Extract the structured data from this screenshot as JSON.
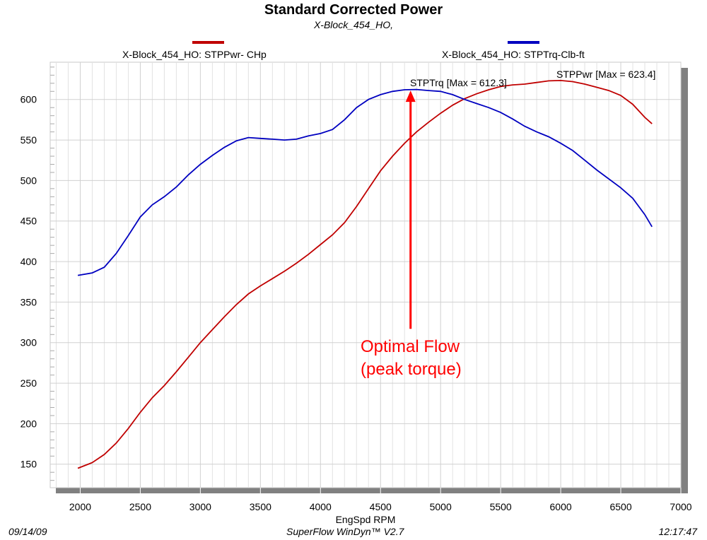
{
  "title": "Standard Corrected Power",
  "subtitle": "X-Block_454_HO,",
  "footer": {
    "date": "09/14/09",
    "software": "SuperFlow WinDyn™ V2.7",
    "time": "12:17:47"
  },
  "annotation": {
    "line1": "Optimal Flow",
    "line2": "(peak torque)",
    "rpm": 4750,
    "from": 317,
    "to": 611,
    "color": "#ff0000"
  },
  "chart_data": {
    "type": "line",
    "title": "Standard Corrected Power",
    "subtitle": "X-Block_454_HO,",
    "xlabel": "EngSpd  RPM",
    "ylabel": "",
    "xlim": [
      1750,
      7000
    ],
    "ylim": [
      121,
      646
    ],
    "xticks": [
      2000,
      2500,
      3000,
      3500,
      4000,
      4500,
      5000,
      5500,
      6000,
      6500,
      7000
    ],
    "yticks": [
      150,
      200,
      250,
      300,
      350,
      400,
      450,
      500,
      550,
      600
    ],
    "grid": true,
    "legend_placement": "top",
    "series": [
      {
        "name": "X-Block_454_HO: STPPwr- CHp",
        "color": "#c00000",
        "max_label": "STPPwr [Max = 623.4]",
        "x": [
          1980,
          2100,
          2200,
          2300,
          2400,
          2500,
          2600,
          2700,
          2800,
          2900,
          3000,
          3100,
          3200,
          3300,
          3400,
          3500,
          3600,
          3700,
          3800,
          3900,
          4000,
          4100,
          4200,
          4300,
          4400,
          4500,
          4600,
          4700,
          4800,
          4900,
          5000,
          5100,
          5200,
          5300,
          5400,
          5500,
          5600,
          5700,
          5800,
          5900,
          6000,
          6100,
          6200,
          6300,
          6400,
          6500,
          6600,
          6700,
          6760
        ],
        "y": [
          145,
          152,
          162,
          176,
          194,
          214,
          232,
          247,
          264,
          282,
          300,
          316,
          332,
          347,
          360,
          370,
          379,
          388,
          398,
          409,
          421,
          433,
          448,
          468,
          490,
          512,
          530,
          546,
          560,
          572,
          583,
          593,
          601,
          607,
          612,
          616,
          618,
          619,
          621,
          623,
          623.4,
          622,
          619,
          615,
          611,
          605,
          594,
          578,
          570
        ]
      },
      {
        "name": "X-Block_454_HO: STPTrq-Clb-ft",
        "color": "#0000c0",
        "max_label": "STPTrq [Max = 612.3]",
        "x": [
          1980,
          2100,
          2200,
          2300,
          2400,
          2500,
          2600,
          2700,
          2800,
          2900,
          3000,
          3100,
          3200,
          3300,
          3400,
          3500,
          3600,
          3700,
          3800,
          3900,
          4000,
          4100,
          4200,
          4300,
          4400,
          4500,
          4600,
          4700,
          4800,
          4900,
          5000,
          5100,
          5200,
          5300,
          5400,
          5500,
          5600,
          5700,
          5800,
          5900,
          6000,
          6100,
          6200,
          6300,
          6400,
          6500,
          6600,
          6700,
          6760
        ],
        "y": [
          383,
          386,
          393,
          410,
          432,
          455,
          470,
          480,
          492,
          507,
          520,
          531,
          541,
          549,
          553,
          552,
          551,
          550,
          551,
          555,
          558,
          563,
          575,
          590,
          600,
          606,
          610,
          612,
          612.3,
          611,
          610,
          606,
          600,
          595,
          590,
          584,
          576,
          567,
          560,
          554,
          546,
          537,
          525,
          513,
          502,
          491,
          478,
          458,
          443
        ]
      }
    ]
  }
}
